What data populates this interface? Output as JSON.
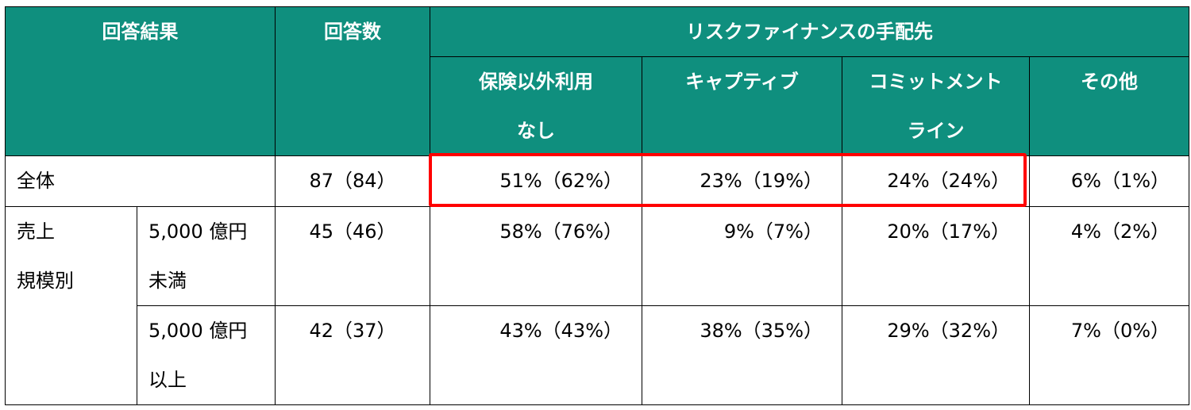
{
  "header": {
    "col_result": "回答結果",
    "col_count": "回答数",
    "col_group": "リスクファイナンスの手配先",
    "sub_cols": [
      {
        "line1": "保険以外利用",
        "line2": "なし"
      },
      {
        "line1": "キャプティブ",
        "line2": ""
      },
      {
        "line1": "コミットメント",
        "line2": "ライン"
      },
      {
        "line1": "その他",
        "line2": ""
      }
    ]
  },
  "rows": {
    "total": {
      "label": "全体",
      "count": "87（84）",
      "values": [
        "51%（62%）",
        "23%（19%）",
        "24%（24%）",
        "6%（1%）"
      ]
    },
    "size_group": {
      "label_line1": "売上",
      "label_line2": "規模別"
    },
    "under": {
      "label_line1": "5,000 億円",
      "label_line2": "未満",
      "count": "45（46）",
      "values": [
        "58%（76%）",
        "9%（7%）",
        "20%（17%）",
        "4%（2%）"
      ]
    },
    "over": {
      "label_line1": "5,000 億円",
      "label_line2": "以上",
      "count": "42（37）",
      "values": [
        "43%（43%）",
        "38%（35%）",
        "29%（32%）",
        "7%（0%）"
      ]
    }
  },
  "colors": {
    "header_bg": "#0f8f7e",
    "highlight": "#ff0000"
  }
}
